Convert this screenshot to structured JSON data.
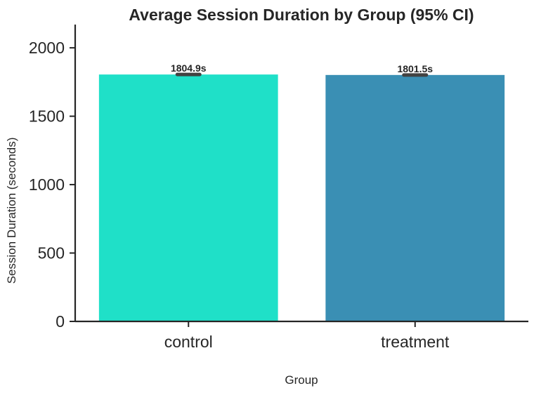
{
  "chart_data": {
    "type": "bar",
    "title": "Average Session Duration by Group (95% CI)",
    "xlabel": "Group",
    "ylabel": "Session Duration (seconds)",
    "categories": [
      "control",
      "treatment"
    ],
    "values": [
      1804.9,
      1801.5
    ],
    "ci_lower": [
      1795.9,
      1792.5
    ],
    "ci_upper": [
      1813.9,
      1810.5
    ],
    "data_labels": [
      "1804.9s",
      "1801.5s"
    ],
    "colors": [
      "#1fe0c8",
      "#3a8fb4"
    ],
    "ylim": [
      0,
      2170
    ],
    "yticks": [
      0,
      500,
      1000,
      1500,
      2000
    ],
    "grid": false,
    "legend": "none"
  }
}
